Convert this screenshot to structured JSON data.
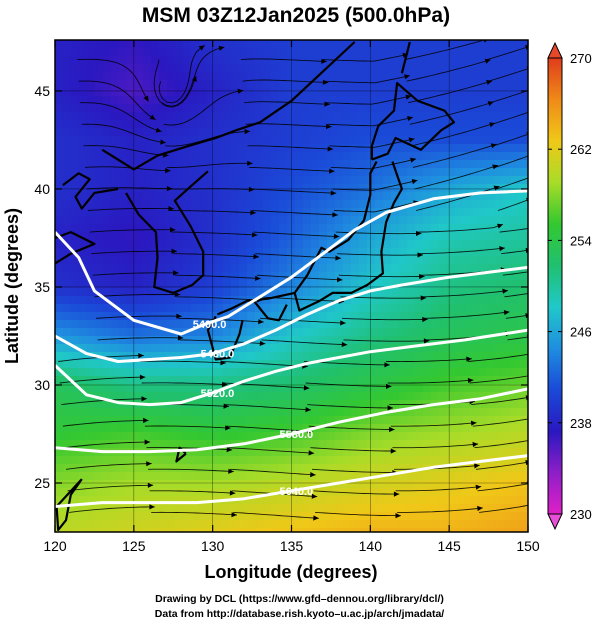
{
  "chart_data": {
    "type": "heatmap",
    "title": "MSM 03Z12Jan2025 (500.0hPa)",
    "xlabel": "Longitude (degrees)",
    "ylabel": "Latitude  (degrees)",
    "xlim": [
      120,
      150
    ],
    "ylim": [
      22.5,
      47.6
    ],
    "x_ticks": [
      120,
      125,
      130,
      135,
      140,
      145,
      150
    ],
    "y_ticks": [
      25,
      30,
      35,
      40,
      45
    ],
    "grid": true,
    "colorbar": {
      "range": [
        230,
        270
      ],
      "tick_values": [
        230,
        238,
        246,
        254,
        262,
        270
      ],
      "tick_labels": [
        "230",
        "238",
        "246",
        "254",
        "262",
        "270"
      ],
      "colors": [
        "#e020c8",
        "#8e1ec8",
        "#2a18c0",
        "#1a4ad8",
        "#1f8ee0",
        "#20c8c8",
        "#20c070",
        "#34c830",
        "#a8dc28",
        "#f0c818",
        "#f08a18",
        "#e03c1c"
      ]
    },
    "temperature_field_K": {
      "lat": [
        47.5,
        45,
        42.5,
        40,
        37.5,
        35,
        32.5,
        30,
        27.5,
        25,
        22.5
      ],
      "lon": [
        120,
        125,
        130,
        135,
        140,
        145,
        150
      ],
      "values": [
        [
          238,
          237,
          239,
          240,
          240,
          240,
          240
        ],
        [
          238,
          236,
          238,
          240,
          240,
          240,
          240
        ],
        [
          239,
          238,
          239,
          240,
          241,
          241,
          241
        ],
        [
          239,
          238,
          239,
          241,
          243,
          246,
          248
        ],
        [
          238,
          237,
          239,
          242,
          246,
          249,
          250
        ],
        [
          239,
          238,
          240,
          244,
          248,
          251,
          252
        ],
        [
          245,
          243,
          244,
          248,
          251,
          253,
          254
        ],
        [
          253,
          251,
          251,
          252,
          254,
          256,
          257
        ],
        [
          255,
          256,
          255,
          256,
          258,
          259,
          260
        ],
        [
          258,
          259,
          259,
          260,
          261,
          262,
          263
        ],
        [
          260,
          261,
          262,
          263,
          264,
          264,
          265
        ]
      ]
    },
    "height_contours": [
      {
        "label": "5400.0",
        "points": [
          [
            120,
            37.8
          ],
          [
            121.5,
            36.5
          ],
          [
            122.5,
            34.8
          ],
          [
            125,
            33.3
          ],
          [
            128,
            32.6
          ],
          [
            129.5,
            33.1
          ],
          [
            131,
            33.5
          ],
          [
            133,
            34.5
          ],
          [
            135,
            35.5
          ],
          [
            137,
            36.7
          ],
          [
            139,
            37.9
          ],
          [
            141,
            38.8
          ],
          [
            144,
            39.5
          ],
          [
            147,
            39.8
          ],
          [
            150,
            39.9
          ]
        ]
      },
      {
        "label": "5460.0",
        "points": [
          [
            120,
            32.5
          ],
          [
            122,
            31.6
          ],
          [
            124,
            31.2
          ],
          [
            126,
            31.3
          ],
          [
            128,
            31.4
          ],
          [
            130,
            31.6
          ],
          [
            132,
            32.1
          ],
          [
            134,
            32.8
          ],
          [
            136,
            33.6
          ],
          [
            138,
            34.3
          ],
          [
            140,
            34.8
          ],
          [
            142,
            35.1
          ],
          [
            145,
            35.5
          ],
          [
            148,
            35.8
          ],
          [
            150,
            36.0
          ]
        ]
      },
      {
        "label": "5520.0",
        "points": [
          [
            120,
            31.0
          ],
          [
            122,
            29.5
          ],
          [
            124,
            29.1
          ],
          [
            126,
            29.0
          ],
          [
            128,
            29.1
          ],
          [
            130,
            29.6
          ],
          [
            132,
            30.2
          ],
          [
            134,
            30.7
          ],
          [
            136,
            31.1
          ],
          [
            138,
            31.4
          ],
          [
            140,
            31.7
          ],
          [
            143,
            32.0
          ],
          [
            146,
            32.3
          ],
          [
            150,
            32.8
          ]
        ]
      },
      {
        "label": "5580.0",
        "points": [
          [
            120,
            26.8
          ],
          [
            123,
            26.6
          ],
          [
            126,
            26.6
          ],
          [
            129,
            26.7
          ],
          [
            132,
            27.0
          ],
          [
            135,
            27.5
          ],
          [
            138,
            28.1
          ],
          [
            141,
            28.6
          ],
          [
            144,
            29.0
          ],
          [
            147,
            29.3
          ],
          [
            150,
            29.8
          ]
        ]
      },
      {
        "label": "5640.0",
        "points": [
          [
            120,
            23.8
          ],
          [
            123,
            24.0
          ],
          [
            126,
            24.0
          ],
          [
            129,
            24.0
          ],
          [
            132,
            24.2
          ],
          [
            135,
            24.6
          ],
          [
            138,
            25.0
          ],
          [
            141,
            25.4
          ],
          [
            144,
            25.8
          ],
          [
            147,
            26.1
          ],
          [
            150,
            26.4
          ]
        ]
      }
    ],
    "cyclonic_center": {
      "lon": 127.2,
      "lat": 44.8
    }
  },
  "credits": {
    "line1": "Drawing by DCL (https://www.gfd–dennou.org/library/dcl/)",
    "line2": "Data from http://database.rish.kyoto–u.ac.jp/arch/jmadata/"
  }
}
